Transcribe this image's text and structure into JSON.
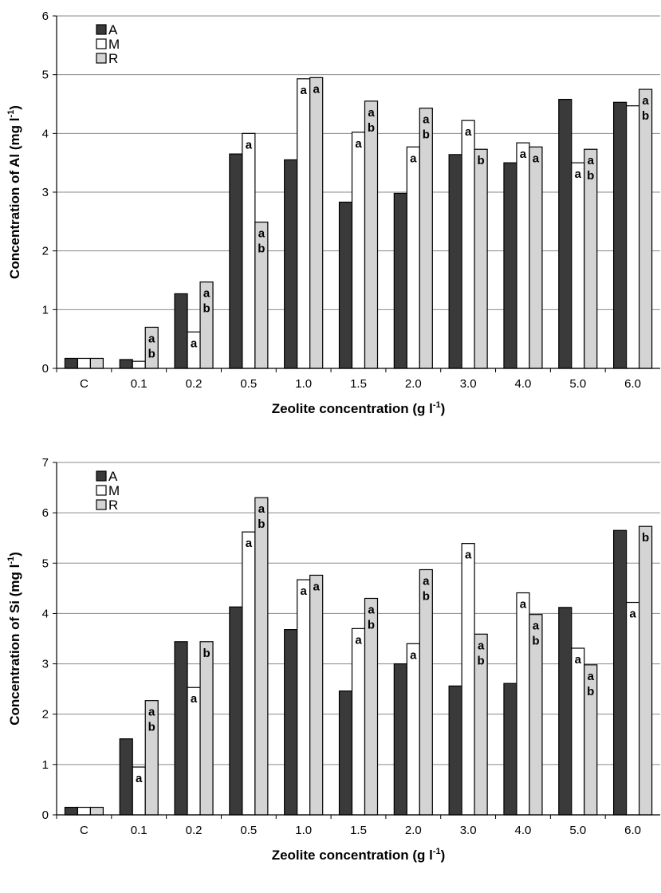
{
  "chart_data": [
    {
      "type": "bar",
      "title": "",
      "xlabel": "Zeolite concentration (g l",
      "xlabel_sup": "-1",
      "xlabel_end": ")",
      "ylabel": "Concentration of Al (mg l",
      "ylabel_sup": "-1",
      "ylabel_end": ")",
      "ylim": [
        0,
        6
      ],
      "yticks": [
        0,
        1,
        2,
        3,
        4,
        5,
        6
      ],
      "grid": true,
      "legend_position": "top-left",
      "categories": [
        "C",
        "0.1",
        "0.2",
        "0.5",
        "1.0",
        "1.5",
        "2.0",
        "3.0",
        "4.0",
        "5.0",
        "6.0"
      ],
      "series": [
        {
          "name": "A",
          "color": "#3a3a3a",
          "values": [
            0.17,
            0.15,
            1.27,
            3.65,
            3.55,
            2.83,
            2.98,
            3.64,
            3.5,
            4.58,
            4.53
          ],
          "labels": [
            "",
            "",
            "",
            "",
            "",
            "",
            "",
            "",
            "",
            "",
            ""
          ]
        },
        {
          "name": "M",
          "color": "#ffffff",
          "values": [
            0.17,
            0.12,
            0.62,
            4.0,
            4.93,
            4.02,
            3.77,
            4.22,
            3.84,
            3.5,
            4.47
          ],
          "labels": [
            "",
            "",
            "a",
            "a",
            "a",
            "a",
            "a",
            "a",
            "a",
            "a",
            ""
          ]
        },
        {
          "name": "R",
          "color": "#d4d4d4",
          "values": [
            0.17,
            0.7,
            1.47,
            2.49,
            4.95,
            4.55,
            4.43,
            3.73,
            3.77,
            3.73,
            4.75
          ],
          "labels": [
            "",
            "ab",
            "ab",
            "ab",
            "a",
            "ab",
            "ab",
            "b",
            "a",
            "ab",
            "ab"
          ]
        }
      ]
    },
    {
      "type": "bar",
      "title": "",
      "xlabel": "Zeolite concentration (g l",
      "xlabel_sup": "-1",
      "xlabel_end": ")",
      "ylabel": "Concentration of Si (mg l",
      "ylabel_sup": "-1",
      "ylabel_end": ")",
      "ylim": [
        0,
        7
      ],
      "yticks": [
        0,
        1,
        2,
        3,
        4,
        5,
        6,
        7
      ],
      "grid": true,
      "legend_position": "top-left",
      "categories": [
        "C",
        "0.1",
        "0.2",
        "0.5",
        "1.0",
        "1.5",
        "2.0",
        "3.0",
        "4.0",
        "5.0",
        "6.0"
      ],
      "series": [
        {
          "name": "A",
          "color": "#3a3a3a",
          "values": [
            0.15,
            1.51,
            3.44,
            4.13,
            3.68,
            2.46,
            3.0,
            2.56,
            2.61,
            4.12,
            5.65
          ],
          "labels": [
            "",
            "",
            "",
            "",
            "",
            "",
            "",
            "",
            "",
            "",
            ""
          ]
        },
        {
          "name": "M",
          "color": "#ffffff",
          "values": [
            0.15,
            0.95,
            2.53,
            5.62,
            4.67,
            3.7,
            3.4,
            5.39,
            4.41,
            3.31,
            4.22
          ],
          "labels": [
            "",
            "a",
            "a",
            "a",
            "a",
            "a",
            "a",
            "a",
            "a",
            "a",
            "a"
          ]
        },
        {
          "name": "R",
          "color": "#d4d4d4",
          "values": [
            0.15,
            2.27,
            3.44,
            6.3,
            4.76,
            4.3,
            4.87,
            3.59,
            3.98,
            2.98,
            5.73
          ],
          "labels": [
            "",
            "ab",
            "b",
            "ab",
            "a",
            "ab",
            "ab",
            "ab",
            "ab",
            "ab",
            "b"
          ]
        }
      ]
    }
  ]
}
